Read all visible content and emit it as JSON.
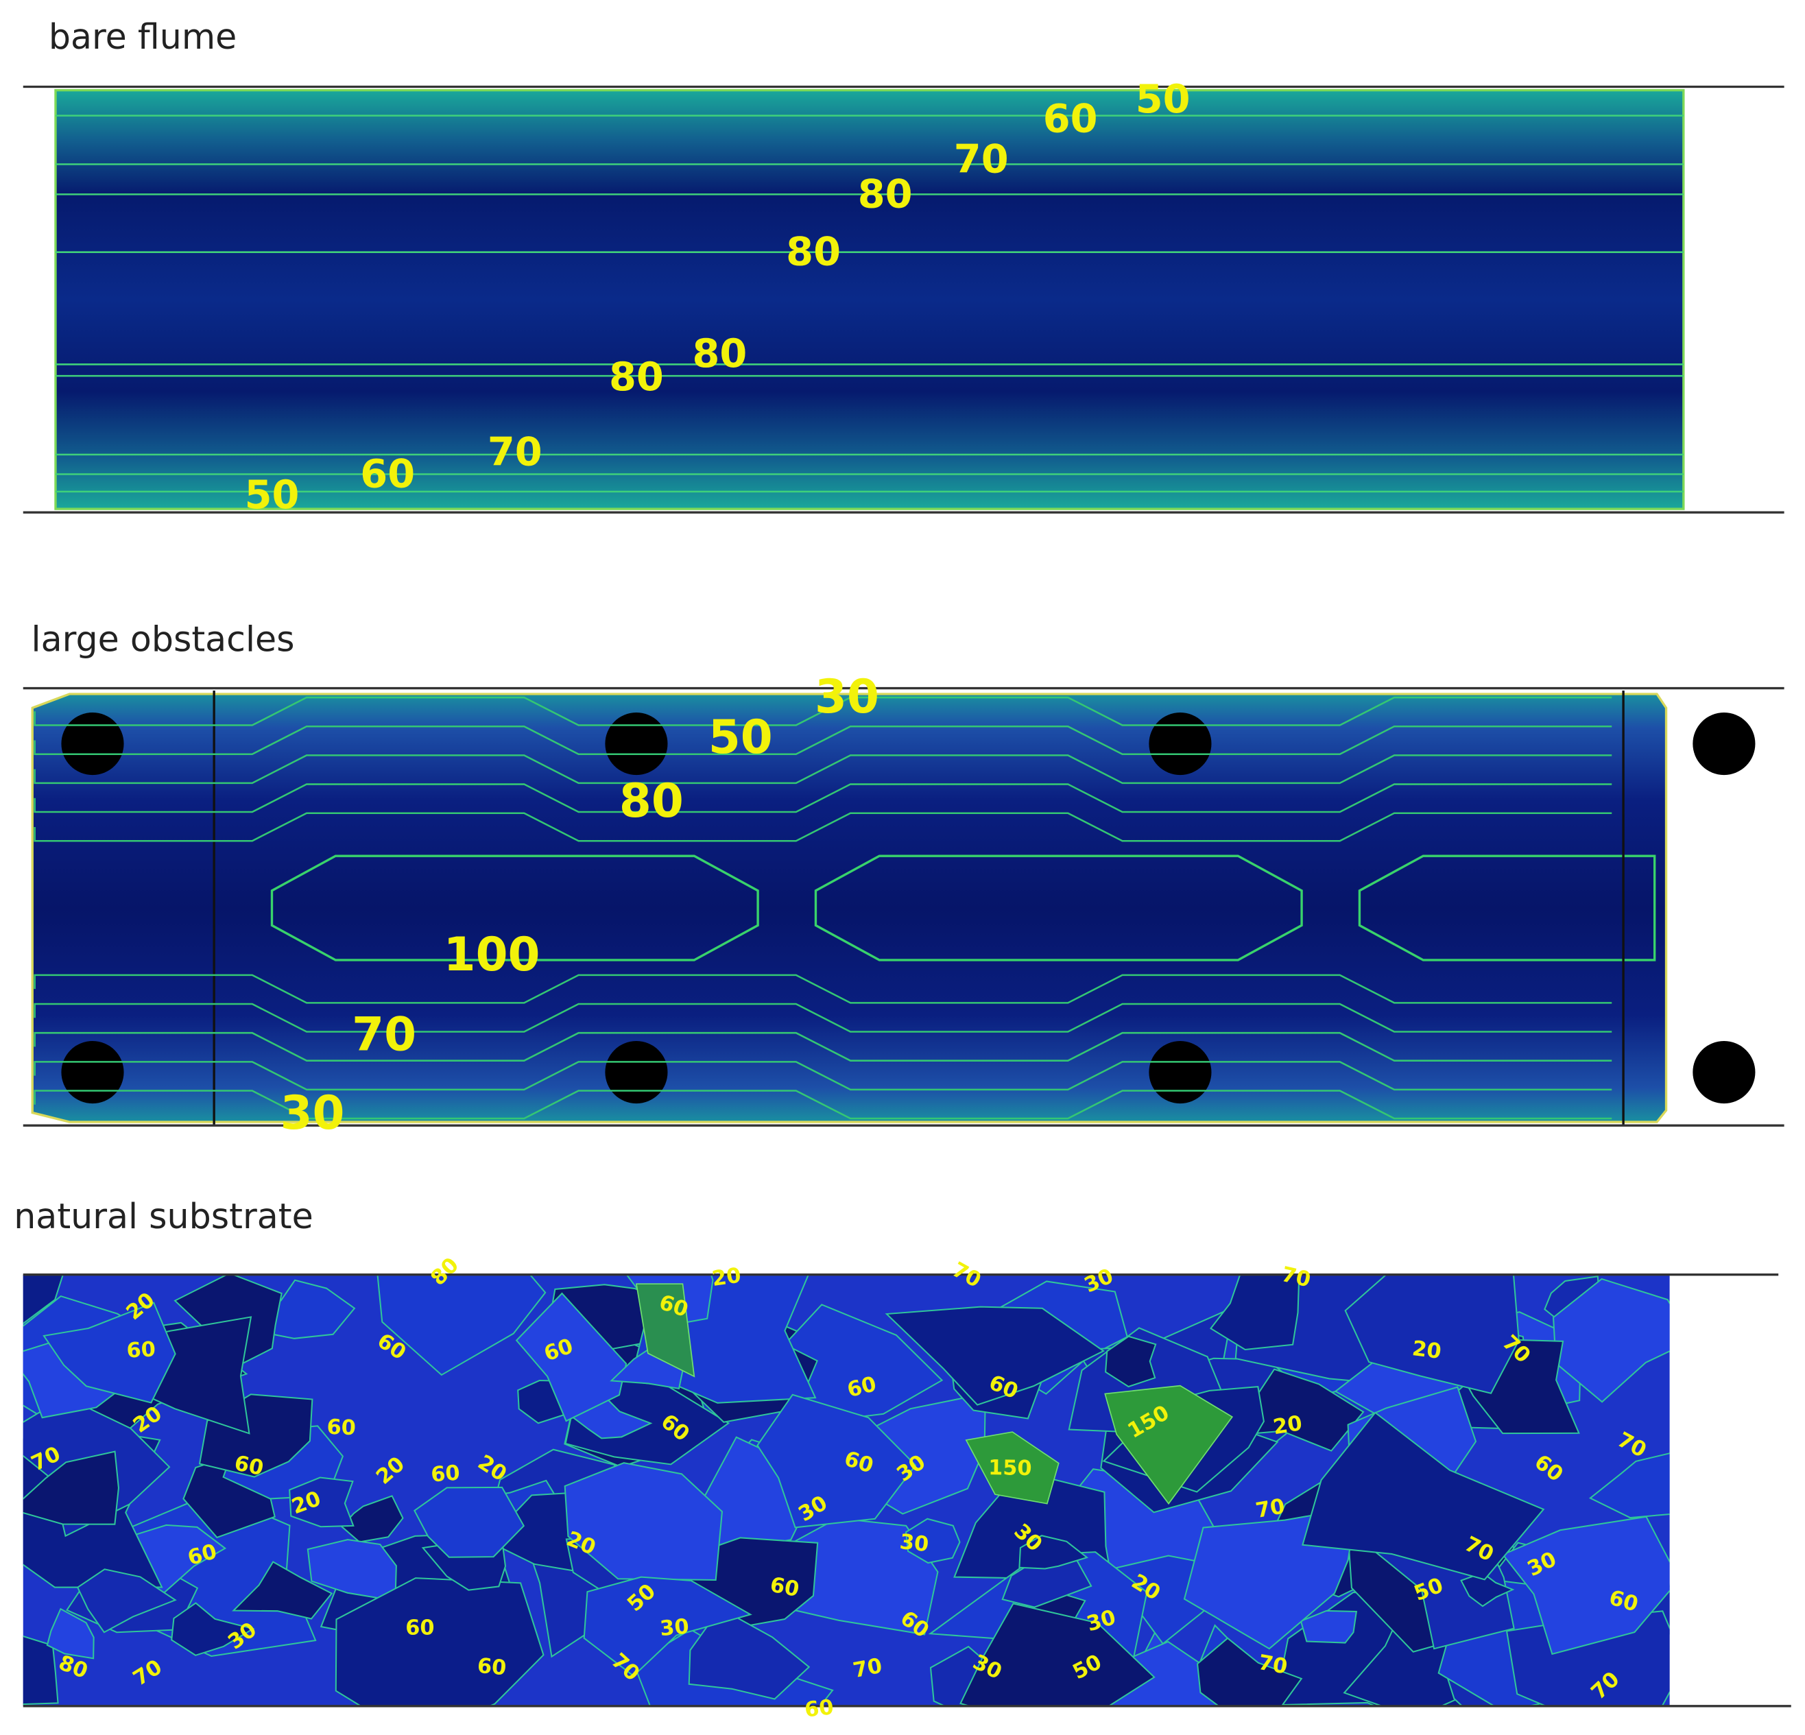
{
  "panels": [
    {
      "title": "bare flume",
      "contour_labels": [
        50,
        60,
        70,
        80,
        80,
        80,
        80,
        70,
        60,
        50
      ]
    },
    {
      "title": "large obstacles",
      "contour_labels": [
        30,
        50,
        80,
        100,
        70,
        30
      ]
    },
    {
      "title": "natural substrate",
      "contour_labels": [
        80,
        20,
        70,
        30,
        70,
        20,
        60,
        60,
        60,
        60,
        20,
        60,
        60,
        60,
        60,
        150,
        20,
        70,
        20,
        70,
        70,
        60,
        20,
        60,
        20,
        20,
        60,
        30,
        150,
        60,
        60,
        20,
        30,
        30,
        30,
        70,
        70,
        30,
        60,
        50,
        30,
        20,
        50,
        60,
        30,
        60,
        60,
        30,
        80,
        70,
        60,
        70,
        70,
        30,
        50,
        70,
        70,
        60
      ]
    }
  ]
}
